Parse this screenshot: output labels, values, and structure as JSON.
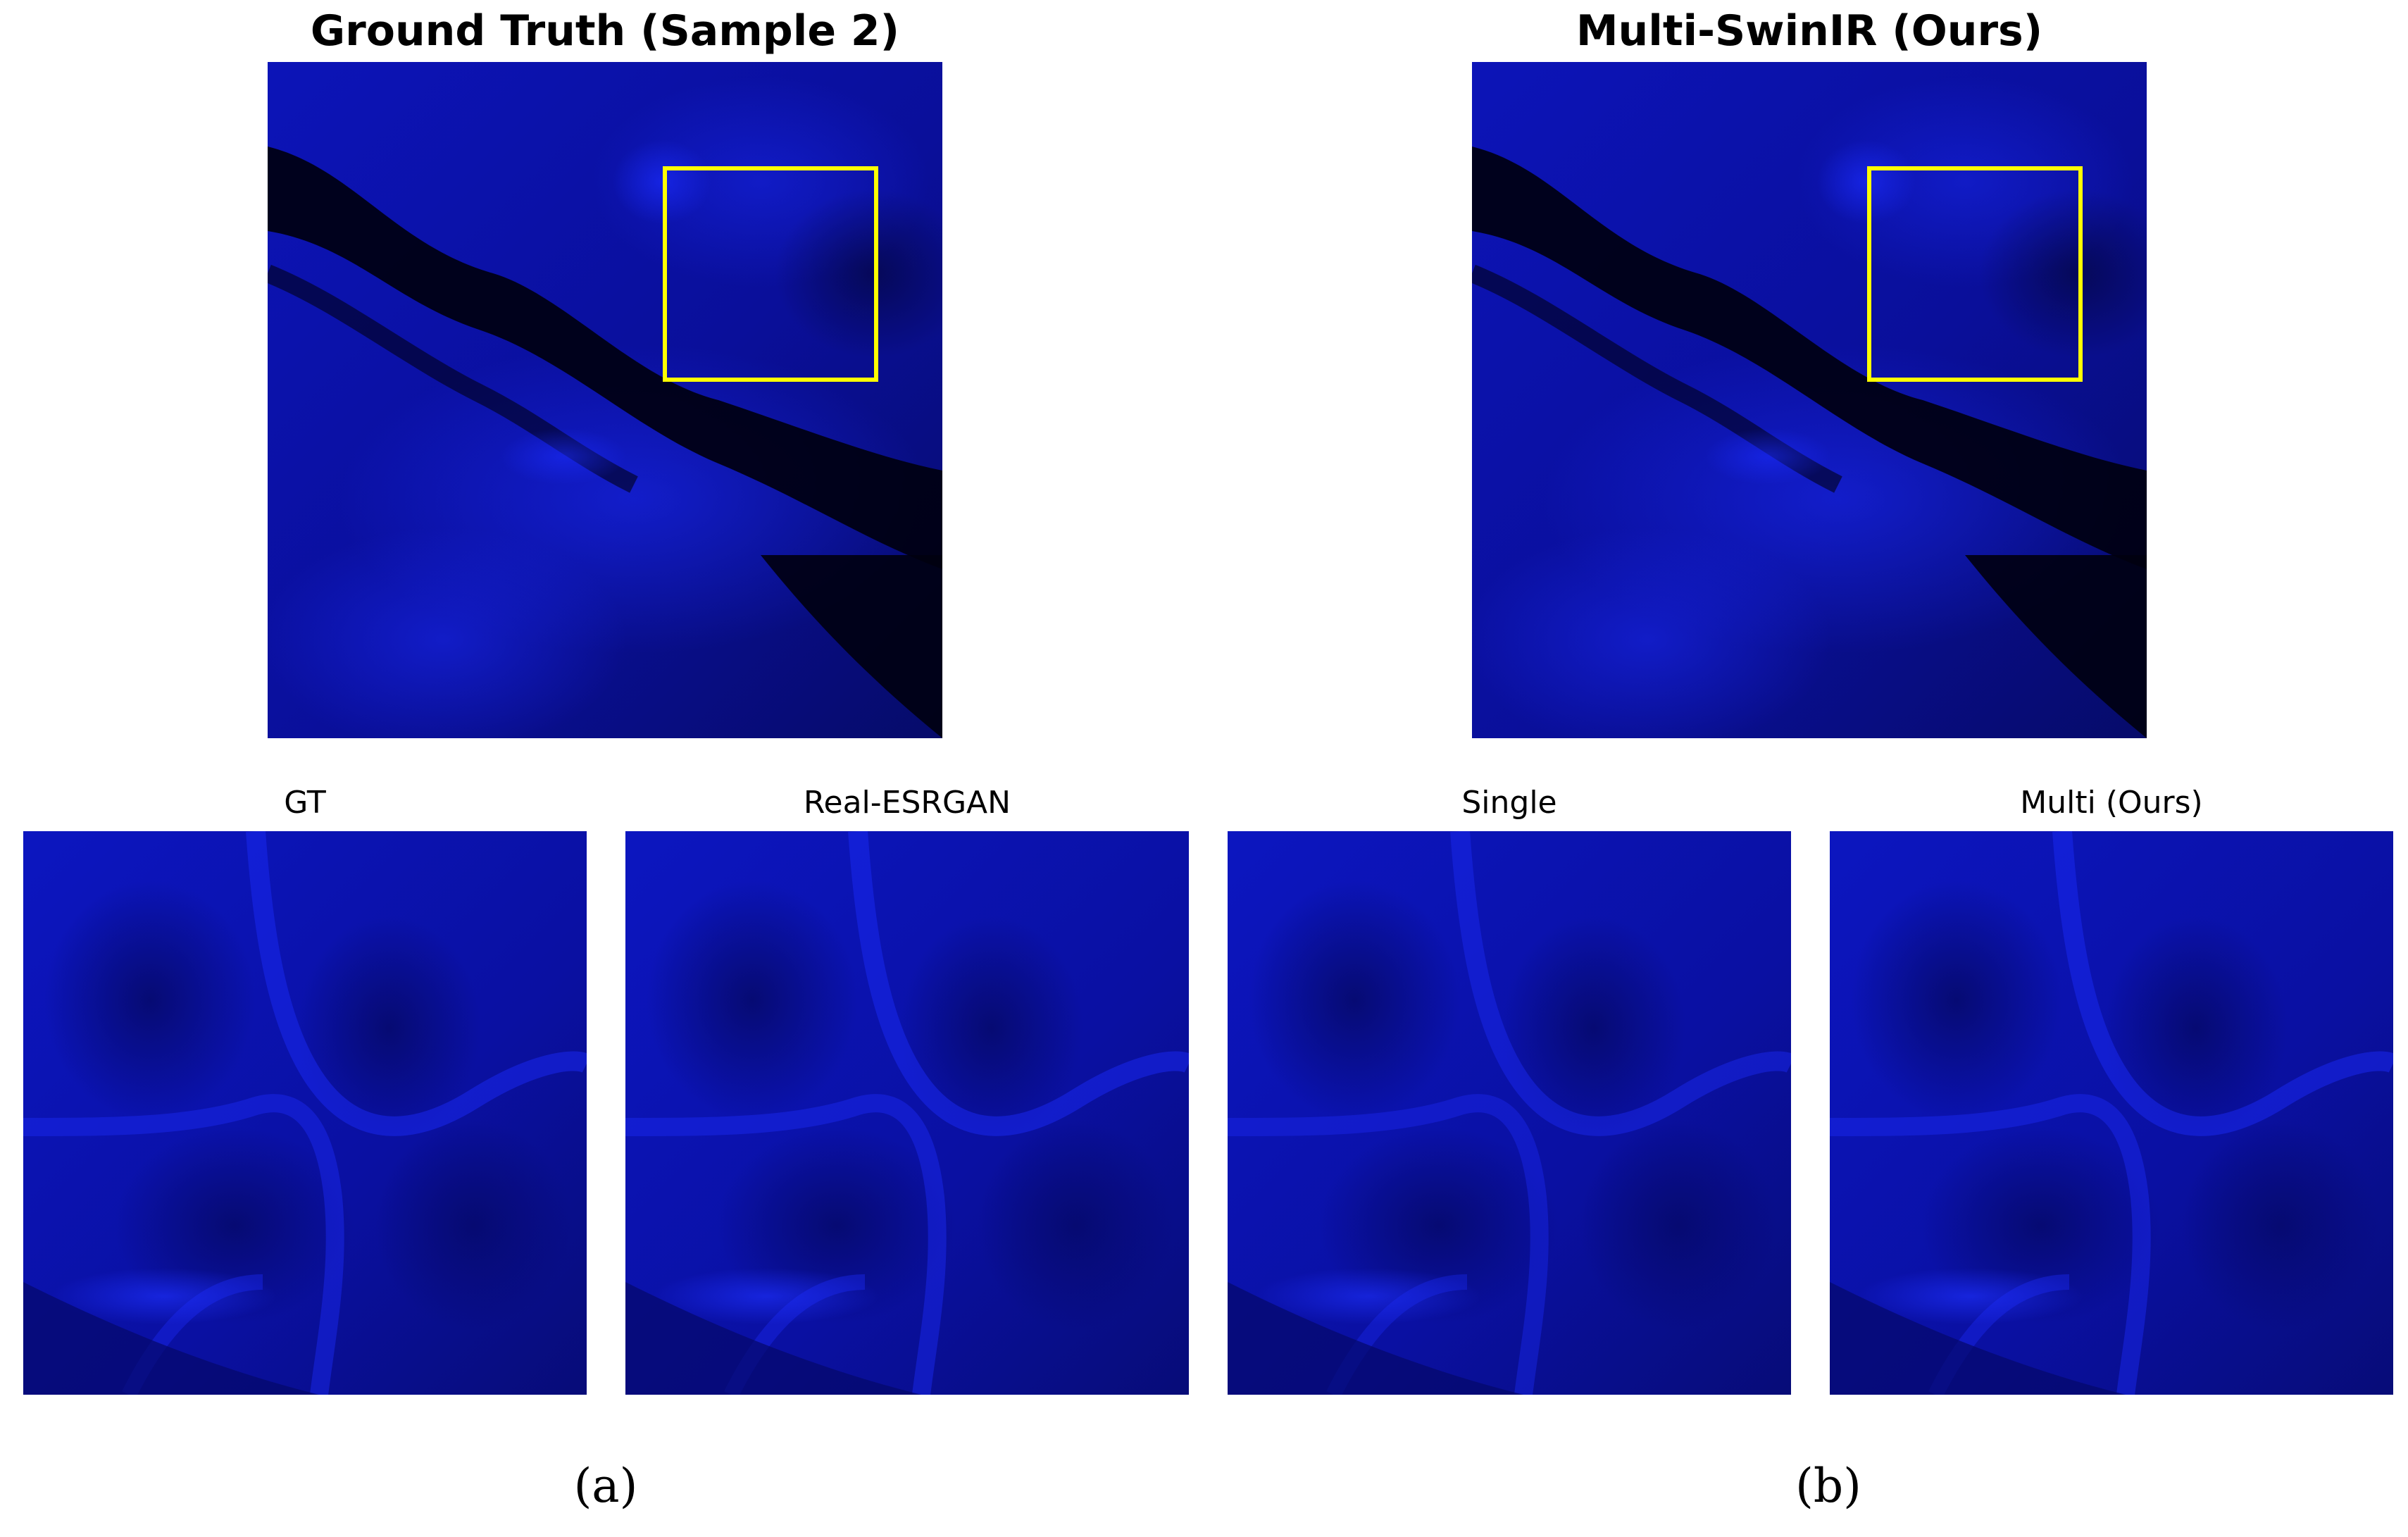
{
  "panels": {
    "left": {
      "title": "Ground Truth (Sample 2)",
      "label": "(a)"
    },
    "right": {
      "title": "Multi-SwinIR (Ours)",
      "label": "(b)"
    }
  },
  "crops": [
    {
      "title": "GT"
    },
    {
      "title": "Real-ESRGAN"
    },
    {
      "title": "Single"
    },
    {
      "title": "Multi (Ours)"
    }
  ],
  "colors": {
    "highlight_box": "#ffff00",
    "tissue_base": "#0a10a0",
    "tissue_bright": "#1a2cff",
    "tissue_dark": "#000010"
  }
}
